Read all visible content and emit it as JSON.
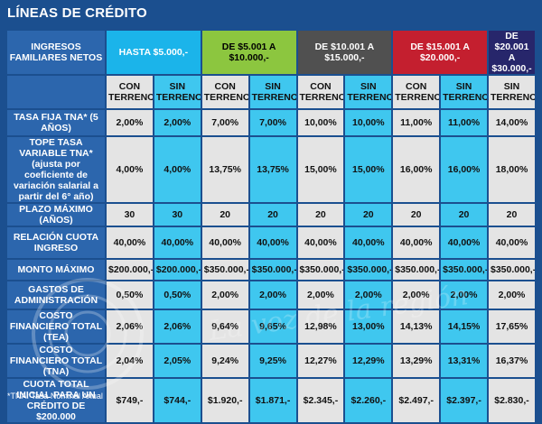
{
  "title": "LÍNEAS DE CRÉDITO",
  "footnote": "*TNA: Tasa Nominal Anual",
  "watermark_text": "La voz de la región",
  "corner_label": "INGRESOS FAMILIARES NETOS",
  "groups": [
    {
      "label": "HASTA $5.000,-",
      "color": "#1bb4ea",
      "text_color": "#ffffff"
    },
    {
      "label": "DE $5.001 A $10.000,-",
      "color": "#8cc63f",
      "text_color": "#000000"
    },
    {
      "label": "DE $10.001 A $15.000,-",
      "color": "#505050",
      "text_color": "#ffffff"
    },
    {
      "label": "DE $15.001 A $20.000,-",
      "color": "#c41f2f",
      "text_color": "#ffffff"
    },
    {
      "label": "DE $20.001 A $30.000,-",
      "color": "#27266b",
      "text_color": "#ffffff"
    }
  ],
  "subheaders": [
    "CON TERRENO",
    "SIN TERRENO",
    "CON TERRENO",
    "SIN TERRENO",
    "CON TERRENO",
    "SIN TERRENO",
    "CON TERRENO",
    "SIN TERRENO",
    "SIN TERRENO"
  ],
  "rows": [
    {
      "label": "TASA FIJA TNA* (5 AÑOS)",
      "values": [
        "2,00%",
        "2,00%",
        "7,00%",
        "7,00%",
        "10,00%",
        "10,00%",
        "11,00%",
        "11,00%",
        "14,00%"
      ]
    },
    {
      "label": "TOPE TASA VARIABLE TNA* (ajusta por coeficiente de variación salarial a partir del 6° año)",
      "values": [
        "4,00%",
        "4,00%",
        "13,75%",
        "13,75%",
        "15,00%",
        "15,00%",
        "16,00%",
        "16,00%",
        "18,00%"
      ]
    },
    {
      "label": "PLAZO MÁXIMO (AÑOS)",
      "values": [
        "30",
        "30",
        "20",
        "20",
        "20",
        "20",
        "20",
        "20",
        "20"
      ]
    },
    {
      "label": "RELACIÓN CUOTA INGRESO",
      "values": [
        "40,00%",
        "40,00%",
        "40,00%",
        "40,00%",
        "40,00%",
        "40,00%",
        "40,00%",
        "40,00%",
        "40,00%"
      ]
    },
    {
      "label": "MONTO MÁXIMO",
      "values": [
        "$200.000,-",
        "$200.000,-",
        "$350.000,-",
        "$350.000,-",
        "$350.000,-",
        "$350.000,-",
        "$350.000,-",
        "$350.000,-",
        "$350.000,-"
      ]
    },
    {
      "label": "GASTOS DE ADMINISTRACIÓN",
      "values": [
        "0,50%",
        "0,50%",
        "2,00%",
        "2,00%",
        "2,00%",
        "2,00%",
        "2,00%",
        "2,00%",
        "2,00%"
      ]
    },
    {
      "label": "COSTO FINANCIERO TOTAL (TEA)",
      "values": [
        "2,06%",
        "2,06%",
        "9,64%",
        "9,65%",
        "12,98%",
        "13,00%",
        "14,13%",
        "14,15%",
        "17,65%"
      ]
    },
    {
      "label": "COSTO FINANCIERO TOTAL (TNA)",
      "values": [
        "2,04%",
        "2,05%",
        "9,24%",
        "9,25%",
        "12,27%",
        "12,29%",
        "13,29%",
        "13,31%",
        "16,37%"
      ]
    },
    {
      "label": "CUOTA TOTAL INICIAL PARA UN CRÉDITO DE $200.000",
      "values": [
        "$749,-",
        "$744,-",
        "$1.920,-",
        "$1.871,-",
        "$2.345,-",
        "$2.260,-",
        "$2.497,-",
        "$2.397,-",
        "$2.830,-"
      ]
    }
  ]
}
